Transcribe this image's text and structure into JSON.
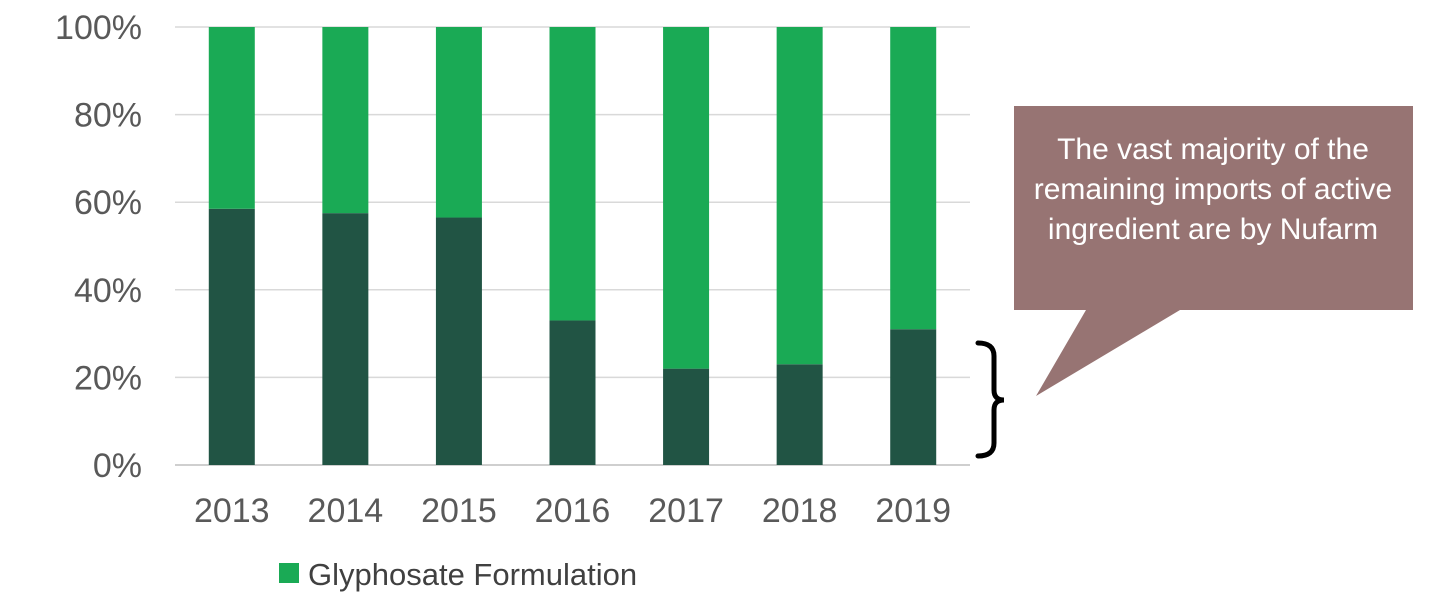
{
  "chart_data": {
    "type": "bar",
    "stacked": true,
    "categories": [
      "2013",
      "2014",
      "2015",
      "2016",
      "2017",
      "2018",
      "2019"
    ],
    "series": [
      {
        "name": "",
        "color": "#215444",
        "values": [
          58.5,
          57.5,
          56.5,
          33,
          22,
          23,
          31
        ]
      },
      {
        "name": "Glyphosate Formulation",
        "color": "#1aaa55",
        "values": [
          41.5,
          42.5,
          43.5,
          67,
          78,
          77,
          69
        ]
      }
    ],
    "ylim": [
      0,
      100
    ],
    "yticks": [
      "0%",
      "20%",
      "40%",
      "60%",
      "80%",
      "100%"
    ],
    "ytick_values": [
      0,
      20,
      40,
      60,
      80,
      100
    ],
    "grid": true,
    "legend": "bottom-left",
    "callout": {
      "text": "The vast majority of the remaining imports of active ingredient are by Nufarm",
      "color": "#977473"
    }
  }
}
